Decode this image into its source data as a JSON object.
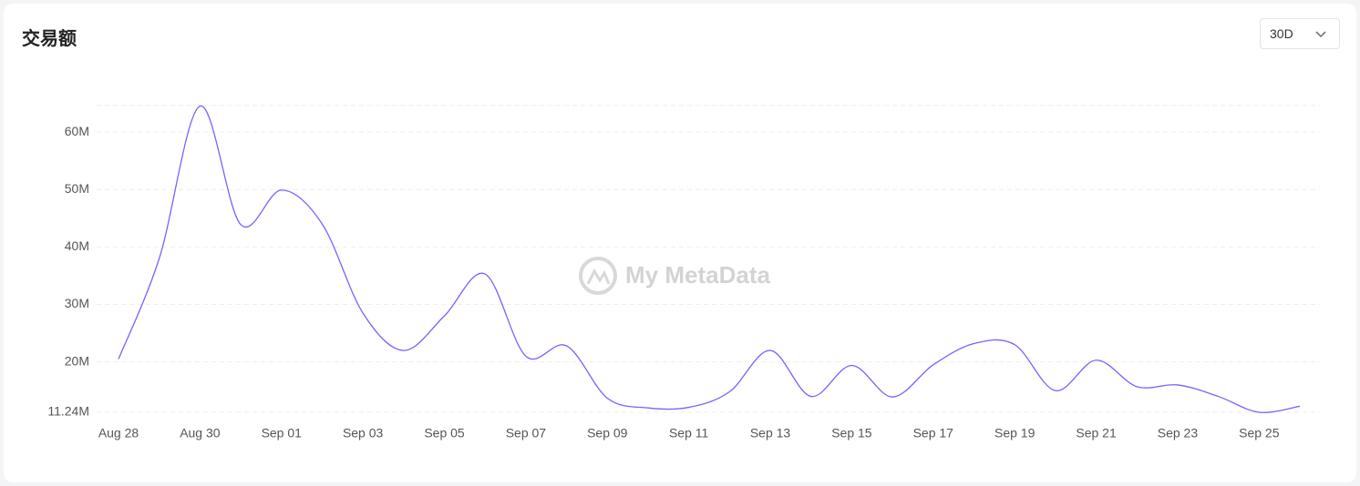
{
  "header": {
    "title": "交易额",
    "period": "30D"
  },
  "chart_data": {
    "type": "line",
    "watermark": "My MetaData",
    "categories": [
      "Aug 28",
      null,
      "Aug 30",
      null,
      "Sep 01",
      null,
      "Sep 03",
      null,
      "Sep 05",
      null,
      "Sep 07",
      null,
      "Sep 09",
      null,
      "Sep 11",
      null,
      "Sep 13",
      null,
      "Sep 15",
      null,
      "Sep 17",
      null,
      "Sep 19",
      null,
      "Sep 21",
      null,
      "Sep 23",
      null,
      "Sep 25",
      null
    ],
    "series": [
      {
        "name": "交易额",
        "color": "#7b61ff",
        "values": [
          20500000,
          38000000,
          64500000,
          43900000,
          49900000,
          44000000,
          28500000,
          22000000,
          28000000,
          35300000,
          21000000,
          22800000,
          13700000,
          12000000,
          12100000,
          14800000,
          22000000,
          14000000,
          19400000,
          13900000,
          19500000,
          23200000,
          23000000,
          15000000,
          20300000,
          15700000,
          16000000,
          14000000,
          11240000,
          12300000
        ]
      }
    ],
    "ylim": [
      11240000,
      64600000
    ],
    "yticks": [
      {
        "value": 11240000,
        "label": "11.24M"
      },
      {
        "value": 20000000,
        "label": "20M"
      },
      {
        "value": 30000000,
        "label": "30M"
      },
      {
        "value": 40000000,
        "label": "40M"
      },
      {
        "value": 50000000,
        "label": "50M"
      },
      {
        "value": 60000000,
        "label": "60M"
      }
    ],
    "grid": true
  }
}
